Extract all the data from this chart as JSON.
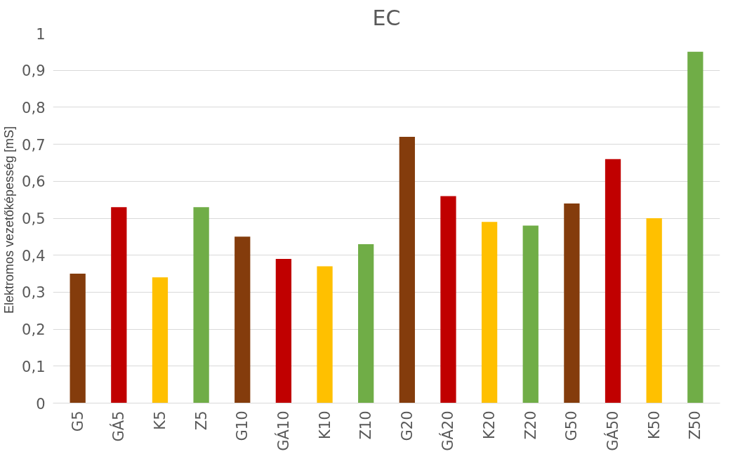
{
  "chart_data": {
    "type": "bar",
    "title": "EC",
    "ylabel": "Elektromos  vezetőképesség [mS]",
    "categories": [
      "G5",
      "GÁ5",
      "K5",
      "Z5",
      "G10",
      "GÁ10",
      "K10",
      "Z10",
      "G20",
      "GÁ20",
      "K20",
      "Z20",
      "G50",
      "GÁ50",
      "K50",
      "Z50"
    ],
    "values": [
      0.35,
      0.53,
      0.34,
      0.53,
      0.45,
      0.39,
      0.37,
      0.43,
      0.72,
      0.56,
      0.49,
      0.48,
      0.54,
      0.66,
      0.5,
      0.95
    ],
    "colors": [
      "#843c0c",
      "#c00000",
      "#ffc000",
      "#70ad47",
      "#843c0c",
      "#c00000",
      "#ffc000",
      "#70ad47",
      "#843c0c",
      "#c00000",
      "#ffc000",
      "#70ad47",
      "#843c0c",
      "#c00000",
      "#ffc000",
      "#70ad47"
    ],
    "ylim": [
      0,
      1
    ],
    "yticks": [
      0,
      {
        "value": 0.1,
        "label": "0,1"
      },
      {
        "value": 0.2,
        "label": "0,2"
      },
      {
        "value": 0.3,
        "label": "0,3"
      },
      {
        "value": 0.4,
        "label": "0,4"
      },
      {
        "value": 0.5,
        "label": "0,5"
      },
      {
        "value": 0.6,
        "label": "0,6"
      },
      {
        "value": 0.7,
        "label": "0,7"
      },
      {
        "value": 0.8,
        "label": "0,8"
      },
      {
        "value": 0.9,
        "label": "0,9"
      },
      1
    ],
    "grid": "y"
  }
}
